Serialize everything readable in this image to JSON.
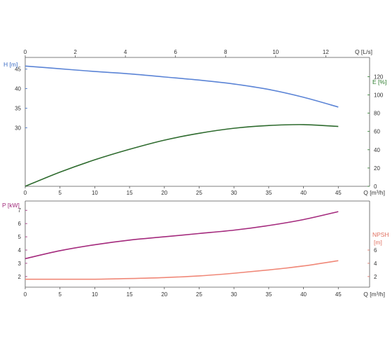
{
  "chart_data": [
    {
      "type": "line",
      "name": "upper",
      "top_axis": {
        "label": "Q [L/s]",
        "ticks": [
          0,
          2,
          4,
          6,
          8,
          10,
          12
        ],
        "range": [
          0,
          13.75
        ]
      },
      "x_axis": {
        "label": "Q [m³/h]",
        "ticks": [
          0,
          5,
          10,
          15,
          20,
          25,
          30,
          35,
          40,
          45
        ],
        "range": [
          0,
          49.5
        ]
      },
      "left_axis": {
        "label": "H [m]",
        "ticks": [
          30,
          35,
          40,
          45
        ],
        "color": "#3b6cc4",
        "range": [
          15,
          48
        ]
      },
      "right_axis": {
        "label": "E [%]",
        "ticks": [
          0,
          20,
          40,
          60,
          80,
          100,
          120
        ],
        "color": "#2a7a2a",
        "range": [
          0,
          141
        ]
      },
      "series": [
        {
          "axis": "left",
          "color": "#5b84d6",
          "x": [
            0,
            5,
            10,
            15,
            20,
            25,
            30,
            35,
            40,
            45
          ],
          "values": [
            45.8,
            45.1,
            44.4,
            43.8,
            43.0,
            42.2,
            41.2,
            39.8,
            37.8,
            35.3
          ]
        },
        {
          "axis": "right",
          "color": "#2e6b2e",
          "x": [
            0,
            5,
            10,
            15,
            20,
            25,
            30,
            35,
            40,
            45
          ],
          "values": [
            0,
            15.5,
            29,
            40.5,
            50.5,
            58,
            63.5,
            66.5,
            67.5,
            65.5
          ]
        }
      ],
      "grid": false
    },
    {
      "type": "line",
      "name": "lower",
      "x_axis": {
        "label": "Q [m³/h]",
        "ticks": [
          0,
          5,
          10,
          15,
          20,
          25,
          30,
          35,
          40,
          45
        ],
        "range": [
          0,
          49.5
        ]
      },
      "left_axis": {
        "label": "P [kW]",
        "ticks": [
          2,
          3,
          4,
          5,
          6,
          7
        ],
        "color": "#a0287a",
        "range": [
          1.2,
          7.7
        ]
      },
      "right_axis": {
        "label_lines": [
          "NPSH",
          "[m]"
        ],
        "ticks": [
          2,
          4,
          6
        ],
        "color": "#e07060",
        "range": [
          0.4,
          13.4
        ]
      },
      "series": [
        {
          "axis": "left",
          "color": "#a42a7d",
          "x": [
            0,
            5,
            10,
            15,
            20,
            25,
            30,
            35,
            40,
            45
          ],
          "values": [
            3.35,
            3.95,
            4.4,
            4.75,
            5.0,
            5.25,
            5.5,
            5.85,
            6.3,
            6.9
          ]
        },
        {
          "axis": "right",
          "color": "#f08878",
          "x": [
            0,
            5,
            10,
            15,
            20,
            25,
            30,
            35,
            40,
            45
          ],
          "values": [
            1.6,
            1.6,
            1.6,
            1.7,
            1.85,
            2.1,
            2.5,
            3.0,
            3.6,
            4.4
          ]
        }
      ],
      "grid": false
    }
  ]
}
